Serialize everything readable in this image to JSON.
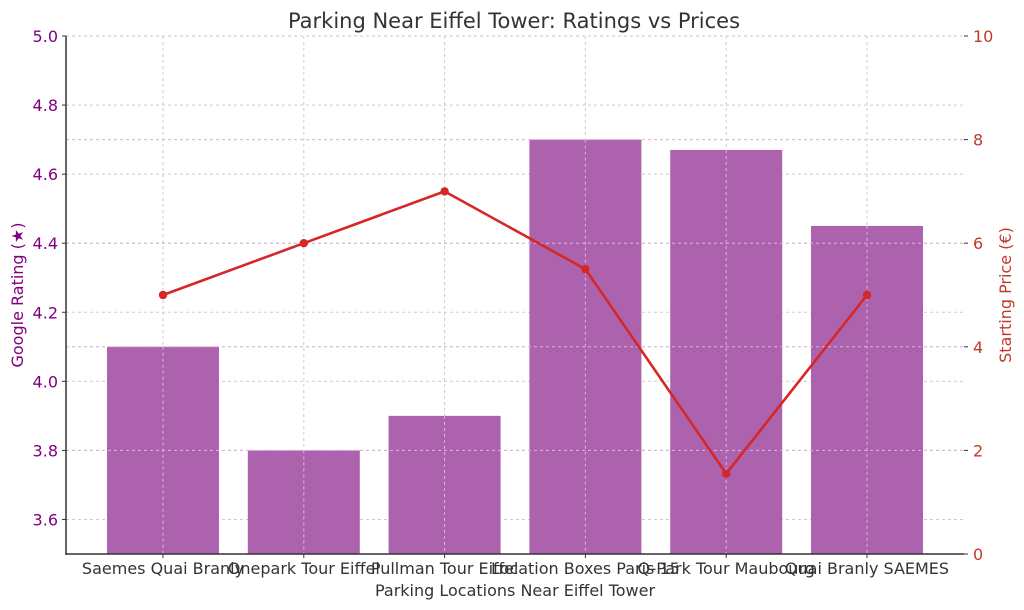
{
  "chart_data": {
    "type": "bar+line",
    "title": "Parking Near Eiffel Tower: Ratings vs Prices",
    "xlabel": "Parking Locations Near Eiffel Tower",
    "categories": [
      "Saemes Quai Branly",
      "Onepark Tour Eiffel",
      "Pullman Tour Eiffel",
      "Location Boxes Paris 15",
      "Q-Park Tour Maubourg",
      "Quai Branly SAEMES"
    ],
    "series": [
      {
        "name": "Google Rating (★)",
        "type": "bar",
        "axis": "left",
        "color": "#AD62AE",
        "values": [
          4.1,
          3.8,
          3.9,
          4.7,
          4.67,
          4.45
        ]
      },
      {
        "name": "Starting Price (€)",
        "type": "line",
        "axis": "right",
        "color": "#D62728",
        "values": [
          5.0,
          6.0,
          7.0,
          5.5,
          1.55,
          5.0
        ]
      }
    ],
    "left_axis": {
      "label": "Google Rating (★)",
      "ylim": [
        3.5,
        5.0
      ],
      "ticks": [
        "3.6",
        "3.8",
        "4.0",
        "4.2",
        "4.4",
        "4.6",
        "4.8",
        "5.0"
      ],
      "color": "#800080"
    },
    "right_axis": {
      "label": "Starting Price (€)",
      "ylim": [
        0,
        10
      ],
      "ticks": [
        "0",
        "2",
        "4",
        "6",
        "8",
        "10"
      ],
      "color": "#C0392B"
    },
    "grid": true,
    "legend": null
  }
}
